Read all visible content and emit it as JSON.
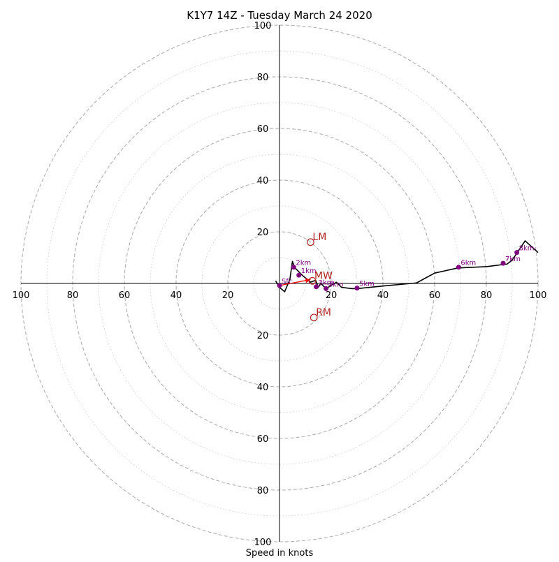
{
  "chart_data": {
    "type": "scatter",
    "title": "K1Y7 14Z - Tuesday March 24 2020",
    "xlabel": "Speed in knots",
    "ylabel": "",
    "xlim": [
      -100,
      100
    ],
    "ylim": [
      -100,
      100
    ],
    "ring_labels": [
      "20",
      "40",
      "60",
      "80",
      "100"
    ],
    "grid": true,
    "colors": {
      "hodograph_line": "#000000",
      "height_markers": "#800080",
      "motion_markers": "#b22222",
      "shear_arrow": "#ff0000",
      "ring_major": "#b0b0b0",
      "ring_minor": "#cccccc"
    },
    "hodograph": [
      [
        -1.5,
        1.0
      ],
      [
        0,
        -1.5
      ],
      [
        2,
        -3.2
      ],
      [
        4,
        1.5
      ],
      [
        5,
        8.5
      ],
      [
        6,
        6.0
      ],
      [
        9,
        3.0
      ],
      [
        12,
        0.5
      ],
      [
        14,
        1.2
      ],
      [
        15,
        -1.5
      ],
      [
        16,
        0.0
      ],
      [
        18,
        -2.0
      ],
      [
        22,
        0.5
      ],
      [
        24,
        -1.5
      ],
      [
        28,
        -2.0
      ],
      [
        30,
        -2.0
      ],
      [
        40,
        -1.0
      ],
      [
        53,
        0.2
      ],
      [
        60,
        4.0
      ],
      [
        69,
        6.0
      ],
      [
        80,
        6.5
      ],
      [
        88,
        7.5
      ],
      [
        90,
        9.0
      ],
      [
        92,
        12.0
      ],
      [
        95,
        16.5
      ],
      [
        100,
        12.0
      ]
    ],
    "height_markers": [
      {
        "label": "Sfc",
        "x": 0,
        "y": -0.8
      },
      {
        "label": "1km",
        "x": 7.5,
        "y": 3.2
      },
      {
        "label": "2km",
        "x": 5.5,
        "y": 6.3
      },
      {
        "label": "3km",
        "x": 14.2,
        "y": -1.3
      },
      {
        "label": "4km",
        "x": 18.0,
        "y": -2.0
      },
      {
        "label": "5km",
        "x": 30.0,
        "y": -1.8
      },
      {
        "label": "6km",
        "x": 69.3,
        "y": 6.3
      },
      {
        "label": "7km",
        "x": 86.5,
        "y": 7.8
      },
      {
        "label": "8km",
        "x": 91.8,
        "y": 12.0
      }
    ],
    "storm_motions": [
      {
        "label": "LM",
        "x": 12.0,
        "y": 16.0
      },
      {
        "label": "MW",
        "x": 12.7,
        "y": 1.0
      },
      {
        "label": "RM",
        "x": 13.3,
        "y": -13.2
      }
    ],
    "shear_vector": {
      "from": [
        0,
        -0.8
      ],
      "to": [
        12.0,
        1.5
      ]
    }
  }
}
